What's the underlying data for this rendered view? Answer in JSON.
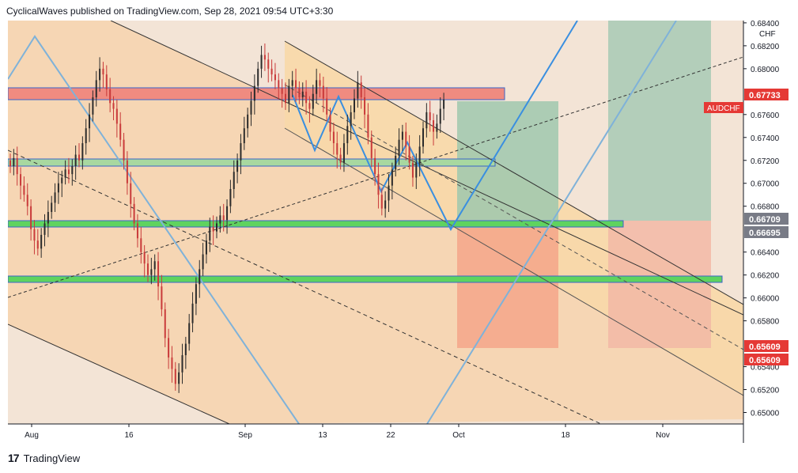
{
  "header": {
    "text": "CyclicalWaves published on TradingView.com, Sep 28, 2021 09:54 UTC+3:30"
  },
  "footer": {
    "logo": "17",
    "brand": "TradingView"
  },
  "colors": {
    "up": "#26a69a",
    "down": "#ef5350",
    "candle": "#c93a3a",
    "green_zone": "#5fd35f",
    "red_zone": "#f07d7d",
    "wave": "#3a8fe0",
    "channel_fill": "#f8d7b0",
    "target_green": "#8fc3a8",
    "target_red": "#f5a48a",
    "price_badge_red": "#e53935"
  },
  "chart_data": {
    "type": "candlestick",
    "symbol": "AUDCHF",
    "currency": "CHF",
    "last_price": "0.67733",
    "x_ticks": [
      "Aug",
      "16",
      "Sep",
      "13",
      "22",
      "Oct",
      "18",
      "Nov"
    ],
    "y_ticks": [
      "0.68400",
      "0.68200",
      "0.68000",
      "0.67600",
      "0.67400",
      "0.67200",
      "0.67000",
      "0.66800",
      "0.66400",
      "0.66200",
      "0.66000",
      "0.65800",
      "0.65400",
      "0.65200",
      "0.65000"
    ],
    "ylim": [
      0.649,
      0.6842
    ],
    "price_labels": [
      {
        "value": "0.67733",
        "kind": "current"
      },
      {
        "value": "0.66709",
        "kind": "level"
      },
      {
        "value": "0.66695",
        "kind": "level"
      },
      {
        "value": "0.65609",
        "kind": "target"
      },
      {
        "value": "0.65609",
        "kind": "target"
      }
    ],
    "zones": [
      {
        "name": "resistance",
        "low": 0.6771,
        "high": 0.6782,
        "color": "red"
      },
      {
        "name": "support-1",
        "low": 0.6719,
        "high": 0.6725,
        "color": "green"
      },
      {
        "name": "support-2",
        "low": 0.6665,
        "high": 0.6671,
        "color": "green"
      },
      {
        "name": "support-3",
        "low": 0.6617,
        "high": 0.6623,
        "color": "green"
      }
    ],
    "candles_close": [
      0.6715,
      0.6722,
      0.6708,
      0.6698,
      0.669,
      0.668,
      0.666,
      0.665,
      0.6643,
      0.6655,
      0.6665,
      0.6675,
      0.6683,
      0.6692,
      0.67,
      0.6705,
      0.6712,
      0.6708,
      0.6715,
      0.6725,
      0.672,
      0.6735,
      0.6748,
      0.676,
      0.6775,
      0.679,
      0.68,
      0.6795,
      0.6782,
      0.677,
      0.6765,
      0.6752,
      0.6738,
      0.672,
      0.67,
      0.6682,
      0.6665,
      0.6652,
      0.664,
      0.663,
      0.662,
      0.6625,
      0.6632,
      0.661,
      0.659,
      0.6565,
      0.6548,
      0.6538,
      0.6525,
      0.6535,
      0.655,
      0.656,
      0.6578,
      0.6595,
      0.6612,
      0.6625,
      0.6638,
      0.665,
      0.6662,
      0.6658,
      0.6665,
      0.6672,
      0.6668,
      0.668,
      0.6695,
      0.671,
      0.672,
      0.6735,
      0.6748,
      0.676,
      0.6772,
      0.6785,
      0.68,
      0.6812,
      0.6808,
      0.68,
      0.6795,
      0.679,
      0.6783,
      0.6778,
      0.677,
      0.6785,
      0.679,
      0.6783,
      0.6775,
      0.678,
      0.677,
      0.6765,
      0.6778,
      0.679,
      0.6785,
      0.6774,
      0.676,
      0.6745,
      0.6735,
      0.6725,
      0.6718,
      0.6735,
      0.675,
      0.6762,
      0.6774,
      0.6788,
      0.6775,
      0.676,
      0.674,
      0.6722,
      0.6708,
      0.669,
      0.6678,
      0.6685,
      0.6698,
      0.6712,
      0.6724,
      0.6738,
      0.6745,
      0.6732,
      0.6718,
      0.6705,
      0.6718,
      0.6732,
      0.6748,
      0.6762,
      0.6755,
      0.6745,
      0.6752,
      0.6765,
      0.6773
    ]
  }
}
